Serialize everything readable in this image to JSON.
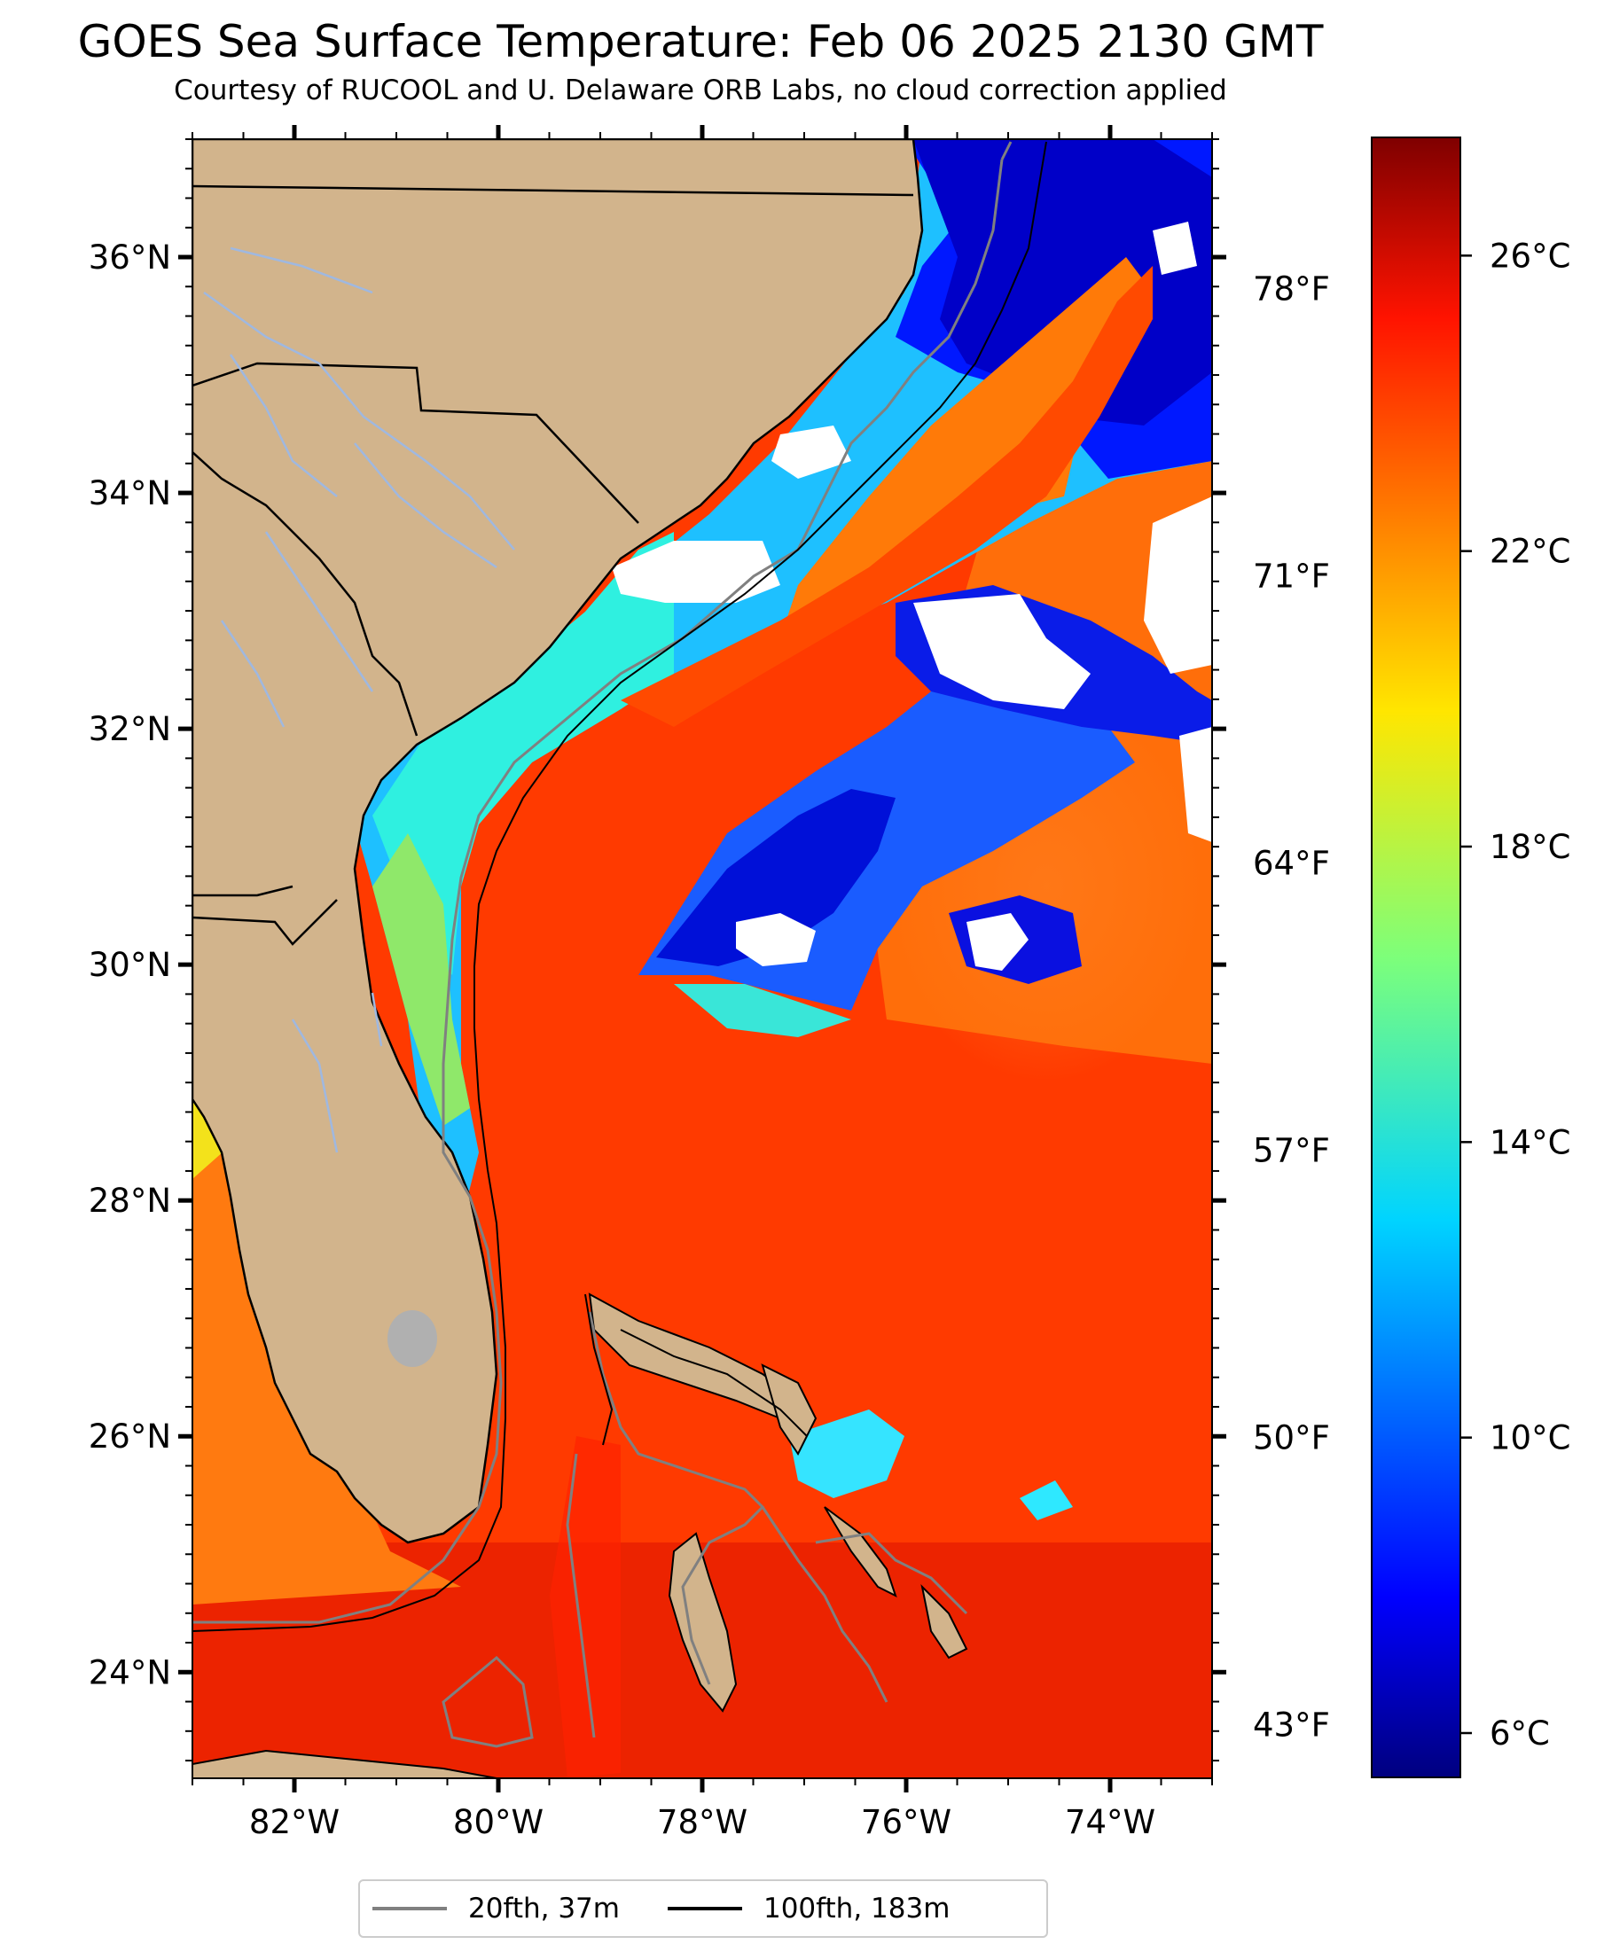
{
  "title": "GOES Sea Surface Temperature: Feb 06 2025 2130 GMT",
  "subtitle": "Courtesy of RUCOOL and U. Delaware ORB Labs, no cloud correction applied",
  "map": {
    "lon_range": [
      -83.0,
      -73.0
    ],
    "lat_range": [
      23.1,
      37.0
    ],
    "lon_ticks": [
      "82°W",
      "80°W",
      "78°W",
      "76°W",
      "74°W"
    ],
    "lon_tick_values": [
      -82,
      -80,
      -78,
      -76,
      -74
    ],
    "lat_ticks": [
      "36°N",
      "34°N",
      "32°N",
      "30°N",
      "28°N",
      "26°N",
      "24°N"
    ],
    "lat_tick_values": [
      36,
      34,
      32,
      30,
      28,
      26,
      24
    ],
    "fahrenheit_ticks": [
      "78°F",
      "71°F",
      "64°F",
      "57°F",
      "50°F",
      "43°F"
    ],
    "fahrenheit_tick_values": [
      78,
      71,
      64,
      57,
      50,
      43
    ],
    "land_color": "#D2B48C",
    "cloud_color": "#ffffff"
  },
  "colorbar": {
    "colormap": "jet",
    "range_c": [
      5.4,
      27.6
    ],
    "tick_labels": [
      "26°C",
      "22°C",
      "18°C",
      "14°C",
      "10°C",
      "6°C"
    ],
    "tick_values": [
      26,
      22,
      18,
      14,
      10,
      6
    ]
  },
  "legend": {
    "items": [
      {
        "label": "20fth, 37m",
        "color": "#808080"
      },
      {
        "label": "100fth, 183m",
        "color": "#000000"
      }
    ]
  }
}
